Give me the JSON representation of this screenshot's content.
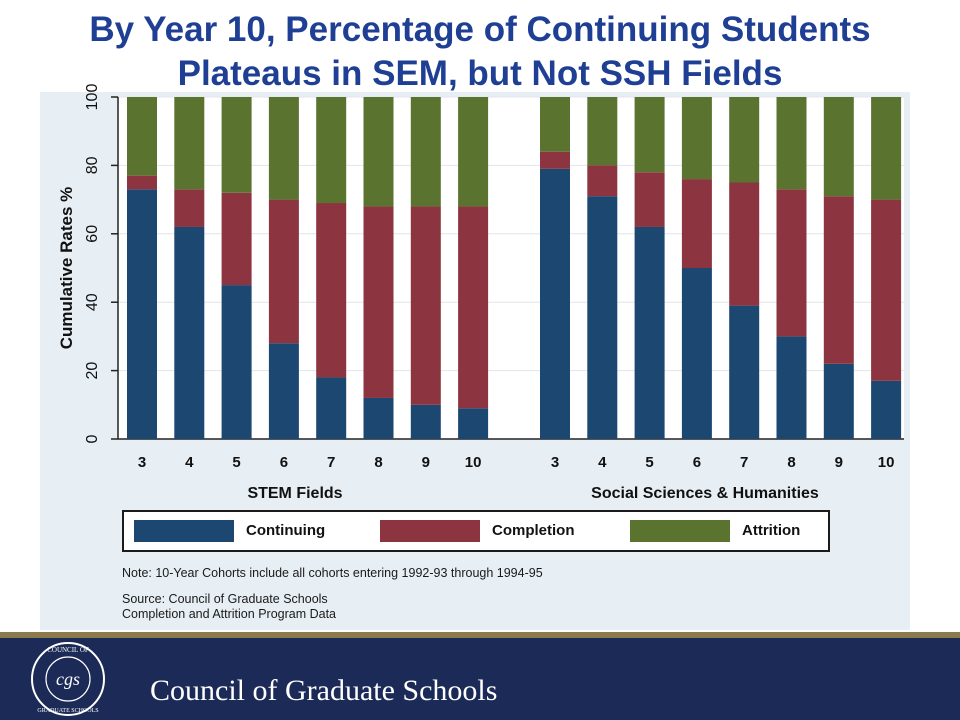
{
  "title_line1": "By Year 10, Percentage of Continuing Students",
  "title_line2": "Plateaus in SEM, but Not SSH Fields",
  "colors": {
    "continuing": "#1c4770",
    "completion": "#8c3540",
    "attrition": "#5a7430",
    "title": "#1f3f95",
    "panel": "#e8eff4",
    "footer": "#1c2a57"
  },
  "chart_data": {
    "type": "bar",
    "stacked": true,
    "ylabel": "Cumulative Rates %",
    "ylim": [
      0,
      100
    ],
    "yticks": [
      0,
      20,
      40,
      60,
      80,
      100
    ],
    "grid": true,
    "legend_position": "bottom",
    "groups": [
      {
        "label": "STEM Fields",
        "categories": [
          "3",
          "4",
          "5",
          "6",
          "7",
          "8",
          "9",
          "10"
        ],
        "series": [
          {
            "name": "Continuing",
            "values": [
              73,
              62,
              45,
              28,
              18,
              12,
              10,
              9
            ]
          },
          {
            "name": "Completion",
            "values": [
              4,
              11,
              27,
              42,
              51,
              56,
              58,
              59
            ]
          },
          {
            "name": "Attrition",
            "values": [
              23,
              27,
              28,
              30,
              31,
              32,
              32,
              32
            ]
          }
        ]
      },
      {
        "label": "Social Sciences & Humanities",
        "categories": [
          "3",
          "4",
          "5",
          "6",
          "7",
          "8",
          "9",
          "10"
        ],
        "series": [
          {
            "name": "Continuing",
            "values": [
              79,
              71,
              62,
              50,
              39,
              30,
              22,
              17
            ]
          },
          {
            "name": "Completion",
            "values": [
              5,
              9,
              16,
              26,
              36,
              43,
              49,
              53
            ]
          },
          {
            "name": "Attrition",
            "values": [
              16,
              20,
              22,
              24,
              25,
              27,
              29,
              30
            ]
          }
        ]
      }
    ]
  },
  "legend": {
    "continuing": "Continuing",
    "completion": "Completion",
    "attrition": "Attrition"
  },
  "note": "Note: 10-Year Cohorts include all cohorts entering 1992-93 through 1994-95",
  "source_line1": "Source: Council of Graduate Schools",
  "source_line2": "Completion and Attrition Program Data",
  "footer": {
    "org_name": "Council of Graduate Schools",
    "seal_top": "COUNCIL OF",
    "seal_mid": "cgs",
    "seal_bottom": "GRADUATE SCHOOLS"
  }
}
